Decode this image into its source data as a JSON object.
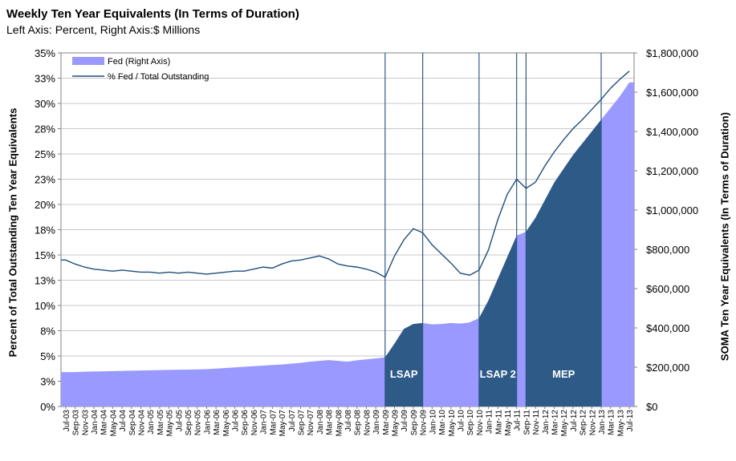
{
  "header": {
    "title": "Weekly Ten Year Equivalents  (In Terms of Duration)",
    "subtitle": "Left Axis: Percent, Right Axis:$ Millions"
  },
  "colors": {
    "fed_fill": "#9999ff",
    "fed_highlight": "#2e5a88",
    "pct_line": "#1f4e79",
    "event_line": "#2e5a88",
    "grid": "#c8c8c8",
    "plot_bg": "#ffffff"
  },
  "chart_data": {
    "type": "area",
    "title": "Weekly Ten Year Equivalents  (In Terms of Duration)",
    "ylabel_left": "Percent of Total Outstanding Ten Year Equivalents",
    "ylabel_right": "SOMA Ten Year Equivalents (In Terms of Duration)",
    "y_left_ticks": [
      "0%",
      "3%",
      "5%",
      "8%",
      "10%",
      "13%",
      "15%",
      "18%",
      "20%",
      "23%",
      "25%",
      "28%",
      "30%",
      "33%",
      "35%"
    ],
    "y_right_ticks": [
      "$0",
      "$200,000",
      "$400,000",
      "$600,000",
      "$800,000",
      "$1,000,000",
      "$1,200,000",
      "$1,400,000",
      "$1,600,000",
      "$1,800,000"
    ],
    "ylim_left": [
      0,
      35
    ],
    "ylim_right": [
      0,
      1800000
    ],
    "x_categories": [
      "Jul-03",
      "Sep-03",
      "Nov-03",
      "Jan-04",
      "Mar-04",
      "May-04",
      "Jul-04",
      "Sep-04",
      "Nov-04",
      "Jan-05",
      "Mar-05",
      "May-05",
      "Jul-05",
      "Sep-05",
      "Nov-05",
      "Jan-06",
      "Mar-06",
      "May-06",
      "Jul-06",
      "Sep-06",
      "Nov-06",
      "Jan-07",
      "Mar-07",
      "May-07",
      "Jul-07",
      "Sep-07",
      "Nov-07",
      "Jan-08",
      "Mar-08",
      "May-08",
      "Jul-08",
      "Sep-08",
      "Nov-08",
      "Jan-09",
      "Mar-09",
      "May-09",
      "Jul-09",
      "Sep-09",
      "Nov-09",
      "Jan-10",
      "Mar-10",
      "May-10",
      "Jul-10",
      "Sep-10",
      "Nov-10",
      "Jan-11",
      "Mar-11",
      "May-11",
      "Jul-11",
      "Sep-11",
      "Nov-11",
      "Jan-12",
      "Mar-12",
      "May-12",
      "Jul-12",
      "Sep-12",
      "Nov-12",
      "Jan-13",
      "Mar-13",
      "May-13",
      "Jul-13"
    ],
    "legend": [
      {
        "name": "Fed (Right Axis)",
        "kind": "area"
      },
      {
        "name": "% Fed / Total Outstanding",
        "kind": "line"
      }
    ],
    "series": [
      {
        "name": "Fed (Right Axis)",
        "axis": "right",
        "values": [
          175000,
          175000,
          177000,
          178000,
          179000,
          180000,
          181000,
          182000,
          183000,
          184000,
          185000,
          186000,
          187000,
          188000,
          189000,
          190000,
          193000,
          196000,
          199000,
          202000,
          205000,
          208000,
          211000,
          214000,
          218000,
          222000,
          228000,
          232000,
          236000,
          232000,
          228000,
          235000,
          240000,
          245000,
          250000,
          320000,
          395000,
          420000,
          425000,
          418000,
          420000,
          425000,
          422000,
          428000,
          450000,
          540000,
          650000,
          760000,
          870000,
          890000,
          960000,
          1050000,
          1140000,
          1210000,
          1280000,
          1340000,
          1400000,
          1460000,
          1520000,
          1580000,
          1650000
        ]
      },
      {
        "name": "% Fed / Total Outstanding",
        "axis": "left",
        "values": [
          14.5,
          14.1,
          13.8,
          13.6,
          13.5,
          13.4,
          13.5,
          13.4,
          13.3,
          13.3,
          13.2,
          13.3,
          13.2,
          13.3,
          13.2,
          13.1,
          13.2,
          13.3,
          13.4,
          13.4,
          13.6,
          13.8,
          13.7,
          14.1,
          14.4,
          14.5,
          14.7,
          14.9,
          14.6,
          14.1,
          13.9,
          13.8,
          13.6,
          13.3,
          12.8,
          14.9,
          16.5,
          17.6,
          17.2,
          16.0,
          15.1,
          14.2,
          13.2,
          13.0,
          13.5,
          15.5,
          18.5,
          21.0,
          22.5,
          21.6,
          22.2,
          23.8,
          25.2,
          26.4,
          27.5,
          28.4,
          29.4,
          30.4,
          31.5,
          32.4,
          33.2
        ]
      }
    ],
    "highlight_ranges": [
      {
        "label": "LSAP",
        "start": "Mar-09",
        "end": "Nov-09"
      },
      {
        "label": "LSAP 2",
        "start": "Nov-10",
        "end": "Jul-11"
      },
      {
        "label": "MEP",
        "start": "Sep-11",
        "end": "Jan-13"
      }
    ],
    "event_lines": [
      "Mar-09",
      "Nov-09",
      "Nov-10",
      "Jul-11",
      "Sep-11",
      "Jan-13"
    ]
  }
}
